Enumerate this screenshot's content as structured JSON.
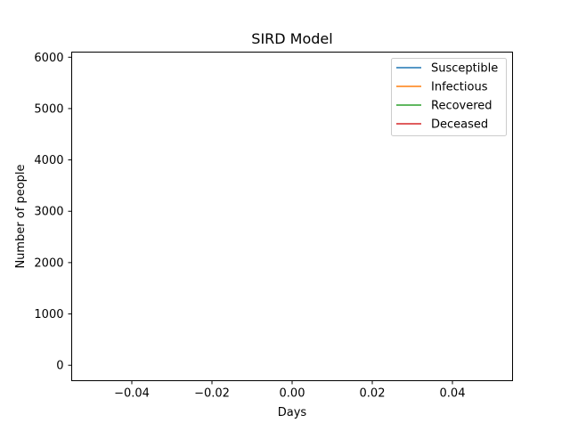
{
  "chart_data": {
    "type": "line",
    "title": "SIRD Model",
    "xlabel": "Days",
    "ylabel": "Number of people",
    "xlim": [
      -0.055,
      0.055
    ],
    "ylim": [
      -300,
      6100
    ],
    "x": [],
    "series": [
      {
        "name": "Susceptible",
        "color": "#1f77b4",
        "values": []
      },
      {
        "name": "Infectious",
        "color": "#ff7f0e",
        "values": []
      },
      {
        "name": "Recovered",
        "color": "#2ca02c",
        "values": []
      },
      {
        "name": "Deceased",
        "color": "#d62728",
        "values": []
      }
    ],
    "x_ticks": [
      {
        "value": -0.04,
        "label": "−0.04"
      },
      {
        "value": -0.02,
        "label": "−0.02"
      },
      {
        "value": 0.0,
        "label": "0.00"
      },
      {
        "value": 0.02,
        "label": "0.02"
      },
      {
        "value": 0.04,
        "label": "0.04"
      }
    ],
    "y_ticks": [
      {
        "value": 0,
        "label": "0"
      },
      {
        "value": 1000,
        "label": "1000"
      },
      {
        "value": 2000,
        "label": "2000"
      },
      {
        "value": 3000,
        "label": "3000"
      },
      {
        "value": 4000,
        "label": "4000"
      },
      {
        "value": 5000,
        "label": "5000"
      },
      {
        "value": 6000,
        "label": "6000"
      }
    ],
    "grid": false,
    "legend_position": "top-right"
  }
}
